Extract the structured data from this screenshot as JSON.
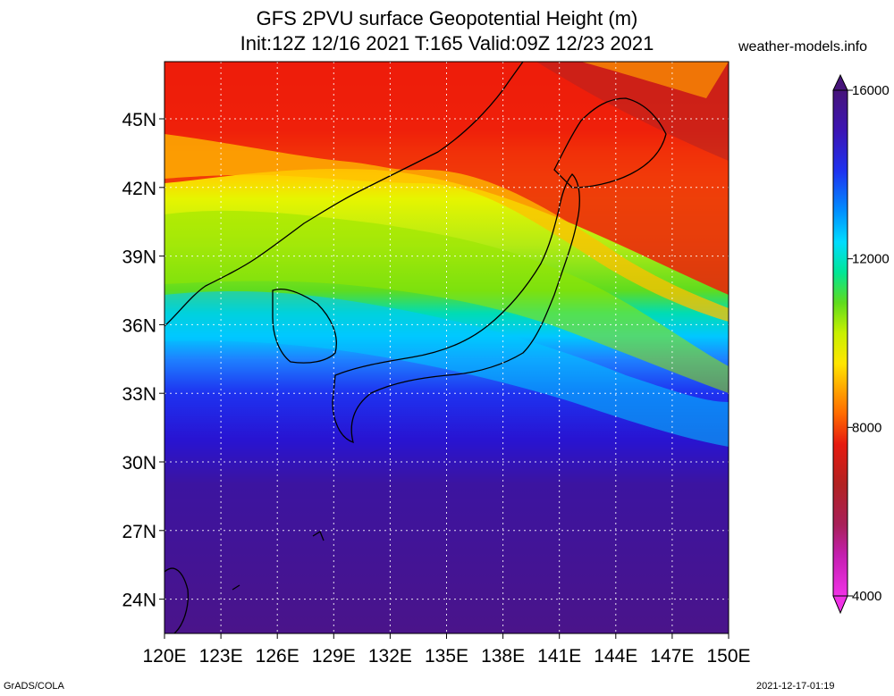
{
  "header": {
    "title_line1": "GFS 2PVU surface Geopotential Height (m)",
    "title_line2": "Init:12Z 12/16 2021 T:165 Valid:09Z 12/23 2021",
    "site": "weather-models.info"
  },
  "map": {
    "lon_labels": [
      "120E",
      "123E",
      "126E",
      "129E",
      "132E",
      "135E",
      "138E",
      "141E",
      "144E",
      "147E",
      "150E"
    ],
    "lat_labels": [
      "45N",
      "42N",
      "39N",
      "36N",
      "33N",
      "30N",
      "27N",
      "24N"
    ],
    "extent": {
      "lon_min": 120,
      "lon_max": 150,
      "lat_min": 22.5,
      "lat_max": 47.5
    }
  },
  "colorbar": {
    "unit": "m",
    "labels": [
      "16000",
      "12000",
      "8000",
      "4000"
    ],
    "range": [
      4000,
      16000
    ],
    "colors": [
      "#f032e6",
      "#d020c8",
      "#b4208c",
      "#a01f4b",
      "#b22222",
      "#d41a12",
      "#f01e0a",
      "#ff3a00",
      "#ff6a00",
      "#ff9a00",
      "#ffc000",
      "#ffe600",
      "#f2ff00",
      "#c8f000",
      "#96e600",
      "#5fdc1e",
      "#14d250",
      "#00e696",
      "#00f0d2",
      "#00dcff",
      "#00b4ff",
      "#0090ff",
      "#1464ff",
      "#1e32f0",
      "#2814d2",
      "#3c14b4",
      "#3c1496",
      "#50148c",
      "#46147a"
    ]
  },
  "footer": {
    "left": "GrADS/COLA",
    "right": "2021-12-17-01:19"
  }
}
